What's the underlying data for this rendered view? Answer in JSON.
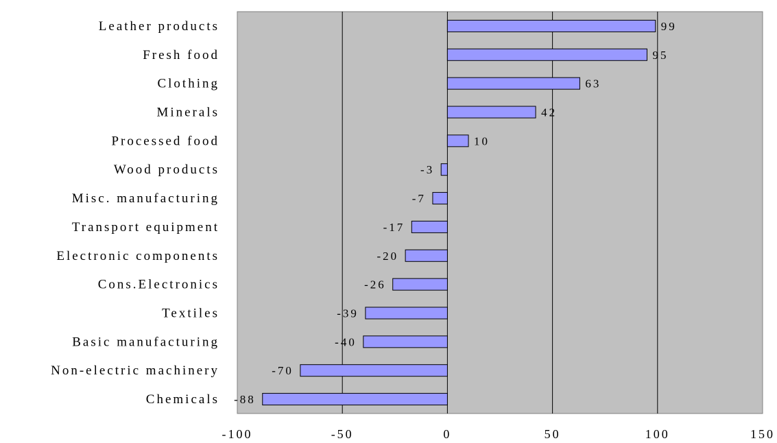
{
  "chart_data": {
    "type": "bar",
    "orientation": "horizontal",
    "categories": [
      "Leather products",
      "Fresh food",
      "Clothing",
      "Minerals",
      "Processed food",
      "Wood products",
      "Misc. manufacturing",
      "Transport equipment",
      "Electronic components",
      "Cons.Electronics",
      "Textiles",
      "Basic manufacturing",
      "Non-electric machinery",
      "Chemicals"
    ],
    "values": [
      99,
      95,
      63,
      42,
      10,
      -3,
      -7,
      -17,
      -20,
      -26,
      -39,
      -40,
      -70,
      -88
    ],
    "data_labels": [
      "99",
      "95",
      "63",
      "42",
      "10",
      "-3",
      "-7",
      "-17",
      "-20",
      "-26",
      "-39",
      "-40",
      "-70",
      "-88"
    ],
    "xlim": [
      -100,
      150
    ],
    "xticks": [
      -100,
      -50,
      0,
      50,
      100,
      150
    ],
    "xtick_labels": [
      "-100",
      "-50",
      "0",
      "50",
      "100",
      "150"
    ],
    "title": "",
    "xlabel": "",
    "ylabel": "",
    "grid": "vertical",
    "legend": "none",
    "colors": {
      "bar_fill": "#9999ff",
      "bar_stroke": "#000000",
      "plot_background": "#c0c0c0",
      "gridline": "#000000"
    }
  }
}
